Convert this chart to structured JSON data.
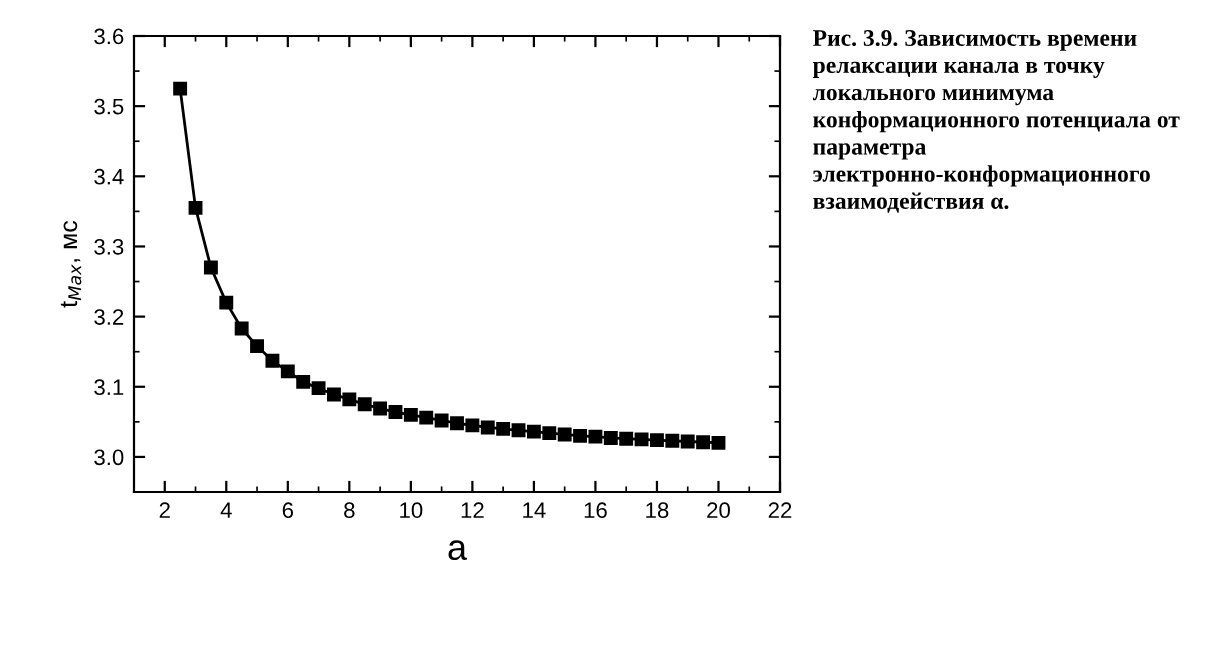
{
  "chart_data": {
    "type": "line",
    "xlabel": "a",
    "ylabel": "t$_{Max}$, мс",
    "annotations": [
      "Рис. 3.9. Зависимость времени релаксации канала в точку локального минимума конформационного потенциала от параметра электронно-конформационного взаимодействия α."
    ],
    "series": [
      {
        "color": "#000000",
        "x": [
          2.5,
          3,
          3.5,
          4,
          4.5,
          5,
          5.5,
          6,
          6.5,
          7,
          7.5,
          8,
          8.5,
          9,
          9.5,
          10,
          10.5,
          11,
          11.5,
          12,
          12.5,
          13,
          13.5,
          14,
          14.5,
          15,
          15.5,
          16,
          16.5,
          17,
          17.5,
          18,
          18.5,
          19,
          19.5,
          20
        ],
        "values": [
          3.525,
          3.355,
          3.27,
          3.22,
          3.183,
          3.158,
          3.137,
          3.122,
          3.107,
          3.098,
          3.089,
          3.082,
          3.075,
          3.069,
          3.064,
          3.06,
          3.056,
          3.052,
          3.048,
          3.045,
          3.042,
          3.04,
          3.038,
          3.036,
          3.034,
          3.032,
          3.03,
          3.029,
          3.027,
          3.026,
          3.025,
          3.024,
          3.023,
          3.022,
          3.021,
          3.02
        ]
      }
    ],
    "xlim": [
      1,
      22
    ],
    "ylim": [
      2.95,
      3.6
    ],
    "xticks": [
      2,
      4,
      6,
      8,
      10,
      12,
      14,
      16,
      18,
      20,
      22
    ],
    "yticks": [
      {
        "value": 3,
        "label": "3.0"
      },
      3.1,
      3.2,
      3.3,
      3.4,
      3.5,
      3.6
    ],
    "marker": "square",
    "line_style": "solid",
    "grid": false,
    "legend": false
  }
}
